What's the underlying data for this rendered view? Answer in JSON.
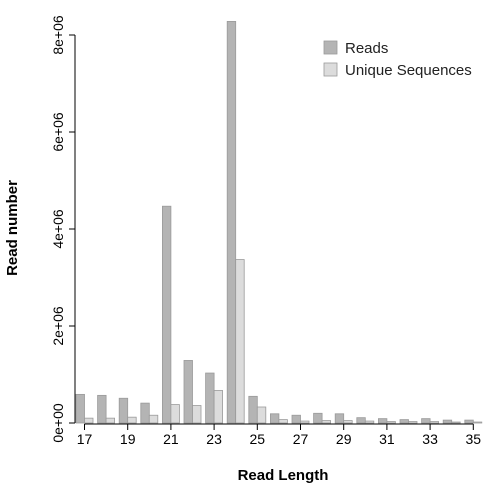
{
  "chart_data": {
    "type": "bar",
    "xlabel": "Read Length",
    "ylabel": "Read number",
    "categories": [
      "17",
      "18",
      "19",
      "20",
      "21",
      "22",
      "23",
      "24",
      "25",
      "26",
      "27",
      "28",
      "29",
      "30",
      "31",
      "32",
      "33",
      "34",
      "35"
    ],
    "x_tick_labels": [
      "17",
      "19",
      "21",
      "23",
      "25",
      "27",
      "29",
      "31",
      "33",
      "35"
    ],
    "y_ticks": [
      0,
      2000000,
      4000000,
      6000000,
      8000000
    ],
    "y_tick_labels": [
      "0e+00",
      "2e+06",
      "4e+06",
      "6e+06",
      "8e+06"
    ],
    "ylim": [
      0,
      8000000
    ],
    "grid": false,
    "legend_position": "top-right",
    "series": [
      {
        "name": "Reads",
        "color": "#b4b4b4",
        "values": [
          590000,
          570000,
          510000,
          410000,
          4470000,
          1290000,
          1030000,
          8280000,
          550000,
          190000,
          160000,
          200000,
          190000,
          110000,
          90000,
          70000,
          90000,
          60000,
          60000
        ]
      },
      {
        "name": "Unique Sequences",
        "color": "#dcdcdc",
        "values": [
          100000,
          100000,
          120000,
          160000,
          380000,
          360000,
          670000,
          3370000,
          330000,
          70000,
          40000,
          50000,
          50000,
          40000,
          30000,
          30000,
          30000,
          20000,
          20000
        ]
      }
    ]
  }
}
